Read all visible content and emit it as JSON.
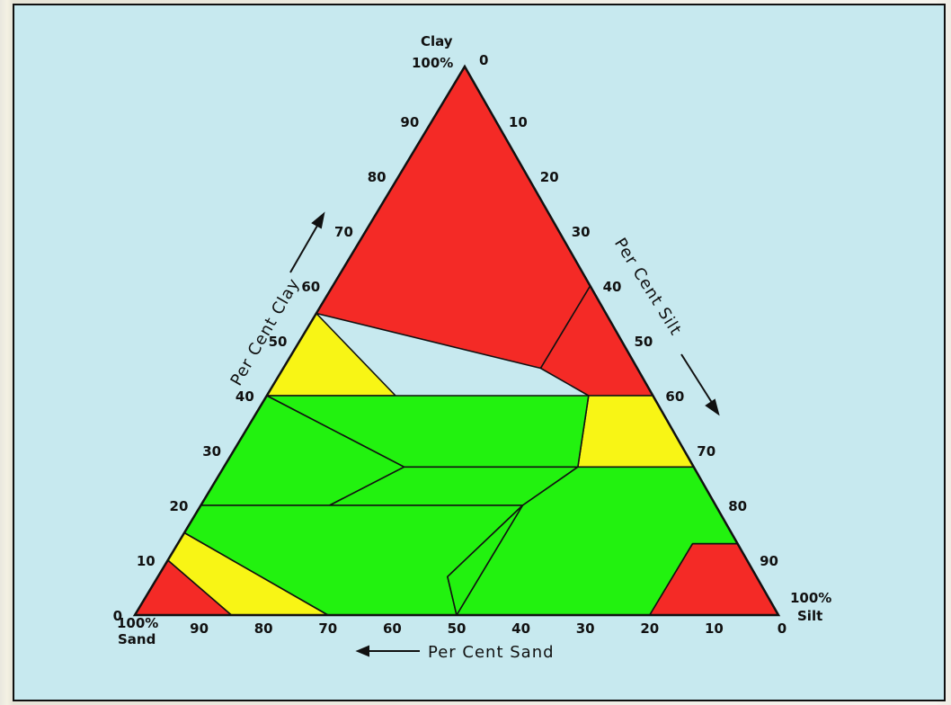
{
  "corners": {
    "clay": {
      "name": "Clay",
      "pct": "100%"
    },
    "sand": {
      "pct": "100%",
      "name": "Sand"
    },
    "silt": {
      "pct": "100%",
      "name": "Silt"
    }
  },
  "axes": {
    "clay": {
      "title": "Per Cent Clay",
      "ticks": [
        "0",
        "10",
        "20",
        "30",
        "40",
        "50",
        "60",
        "70",
        "80",
        "90"
      ]
    },
    "silt": {
      "title": "Per Cent Silt",
      "ticks": [
        "0",
        "10",
        "20",
        "30",
        "40",
        "50",
        "60",
        "70",
        "80",
        "90"
      ]
    },
    "sand": {
      "title": "Per Cent Sand",
      "ticks": [
        "90",
        "80",
        "70",
        "60",
        "50",
        "40",
        "30",
        "20",
        "10",
        "0"
      ]
    }
  },
  "colors": {
    "red": "#f42a26",
    "yellow": "#f8f515",
    "green": "#22f20f",
    "outline": "#111111",
    "background": "#c7e9ef"
  },
  "regions": [
    {
      "color": "red",
      "points": [
        [
          40,
          60
        ],
        [
          0,
          100
        ],
        [
          0,
          55
        ],
        [
          40,
          45
        ]
      ]
    },
    {
      "color": "red",
      "points": [
        [
          40,
          60
        ],
        [
          40,
          45
        ],
        [
          50,
          40
        ],
        [
          60,
          40
        ]
      ]
    },
    {
      "color": "yellow",
      "points": [
        [
          0,
          55
        ],
        [
          20,
          40
        ],
        [
          0,
          40
        ]
      ]
    },
    {
      "color": "yellow",
      "points": [
        [
          60,
          40
        ],
        [
          50,
          40
        ],
        [
          55,
          27
        ],
        [
          73,
          27
        ]
      ]
    },
    {
      "color": "green",
      "points": [
        [
          20,
          40
        ],
        [
          50,
          40
        ],
        [
          55,
          27
        ],
        [
          28,
          27
        ],
        [
          0,
          40
        ]
      ]
    },
    {
      "color": "green",
      "points": [
        [
          0,
          40
        ],
        [
          28,
          27
        ],
        [
          20,
          20
        ],
        [
          0,
          20
        ]
      ]
    },
    {
      "color": "green",
      "points": [
        [
          28,
          27
        ],
        [
          55,
          27
        ],
        [
          50,
          20
        ],
        [
          20,
          20
        ]
      ]
    },
    {
      "color": "green",
      "points": [
        [
          55,
          27
        ],
        [
          73,
          27
        ],
        [
          87,
          13
        ],
        [
          80,
          13
        ],
        [
          80,
          0
        ],
        [
          50,
          0
        ],
        [
          50,
          20
        ]
      ]
    },
    {
      "color": "green",
      "points": [
        [
          0,
          20
        ],
        [
          20,
          20
        ],
        [
          50,
          20
        ],
        [
          45,
          7
        ],
        [
          50,
          0
        ],
        [
          30,
          0
        ],
        [
          0,
          15
        ]
      ]
    },
    {
      "color": "green",
      "points": [
        [
          45,
          7
        ],
        [
          50,
          0
        ],
        [
          50,
          20
        ]
      ]
    },
    {
      "color": "yellow",
      "points": [
        [
          0,
          15
        ],
        [
          30,
          0
        ],
        [
          15,
          0
        ],
        [
          0,
          10
        ]
      ]
    },
    {
      "color": "red",
      "points": [
        [
          0,
          10
        ],
        [
          15,
          0
        ],
        [
          0,
          0
        ]
      ]
    },
    {
      "color": "red",
      "points": [
        [
          80,
          0
        ],
        [
          80,
          13
        ],
        [
          87,
          13
        ],
        [
          100,
          0
        ]
      ]
    }
  ]
}
